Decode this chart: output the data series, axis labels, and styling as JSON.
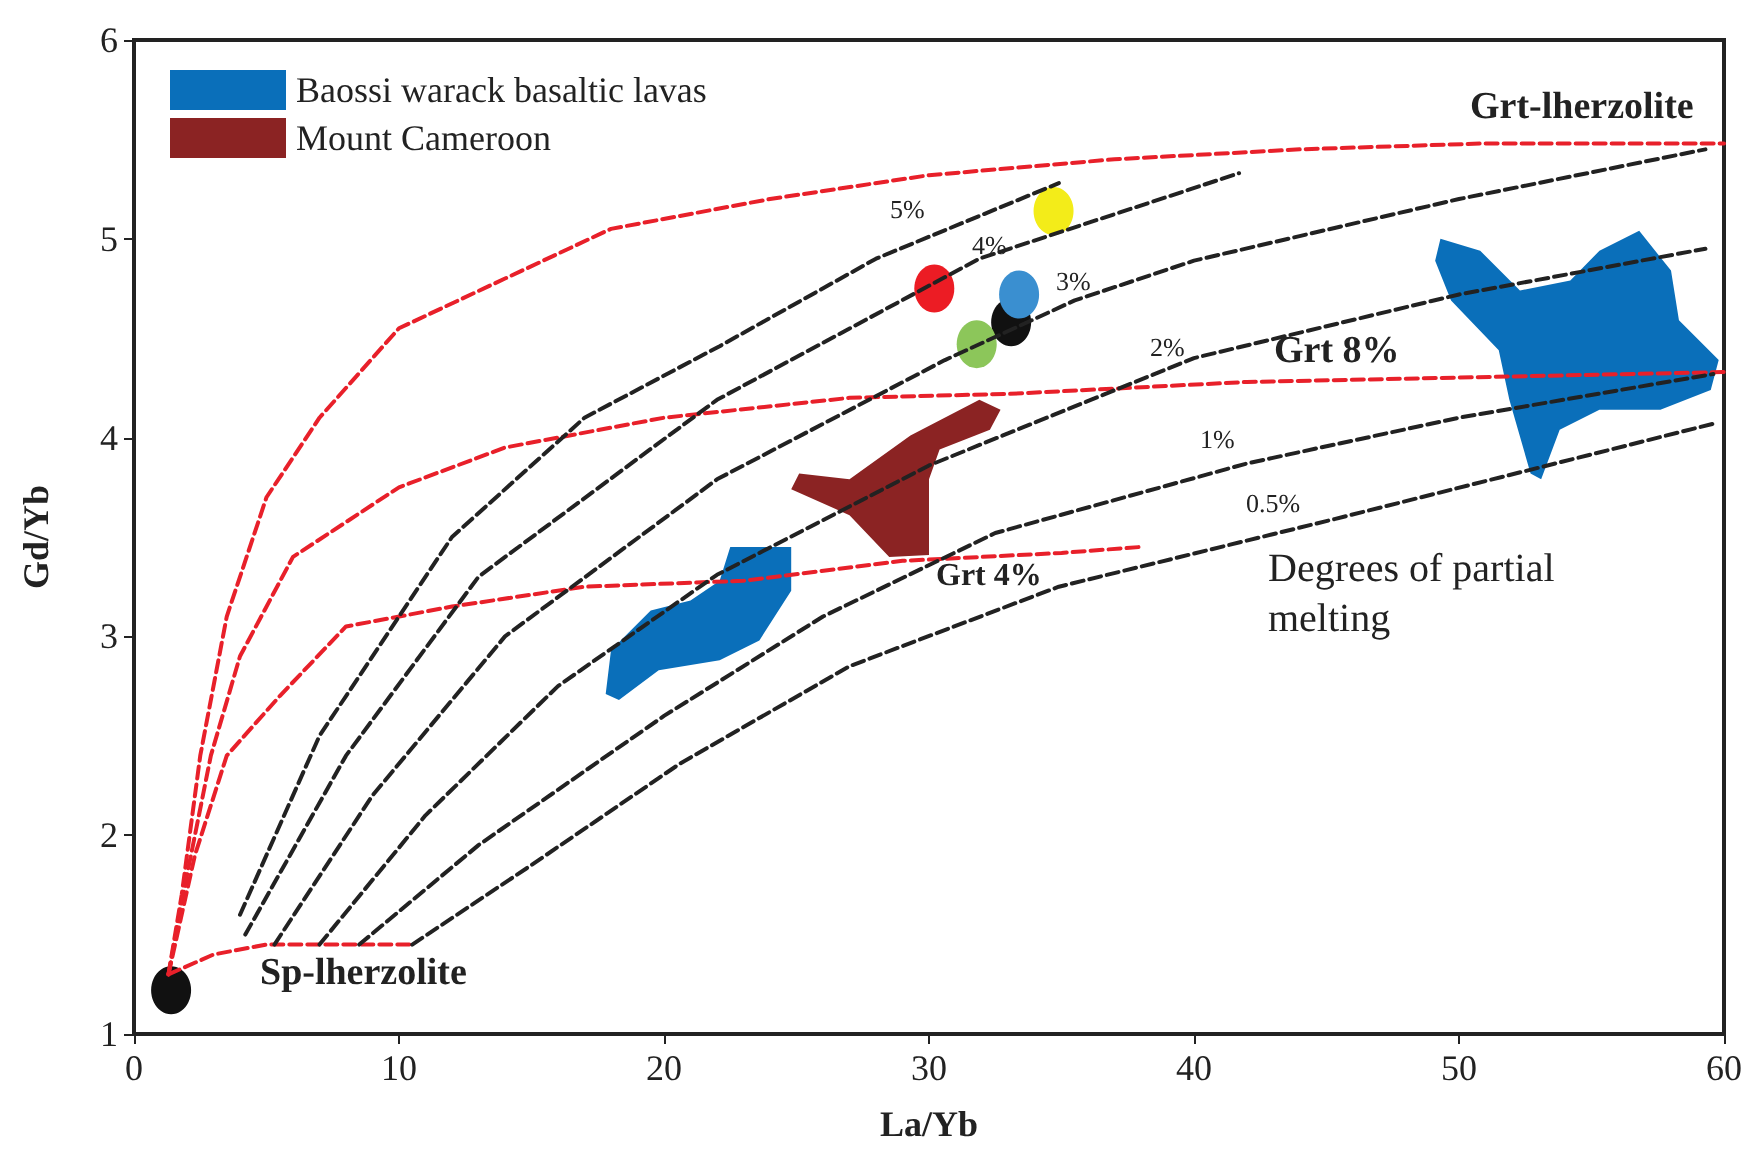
{
  "chart_data": {
    "type": "line",
    "xlabel": "La/Yb",
    "ylabel": "Gd/Yb",
    "xlim": [
      0,
      60
    ],
    "ylim": [
      1,
      6
    ],
    "xticks": [
      0,
      10,
      20,
      30,
      40,
      50,
      60
    ],
    "yticks": [
      1,
      2,
      3,
      4,
      5,
      6
    ],
    "grid": false,
    "legend": "top left",
    "line_style": "dashed",
    "series": [
      {
        "type": "area",
        "name": "Baossi warack basaltic lavas",
        "color": "#0a6fba",
        "x": [
          17.8,
          18.0,
          19.5,
          21.0,
          22.1,
          22.5,
          24.8,
          24.8,
          23.6,
          22.1,
          19.8,
          18.3
        ],
        "values": [
          2.71,
          2.93,
          3.13,
          3.18,
          3.28,
          3.45,
          3.45,
          3.23,
          2.98,
          2.88,
          2.83,
          2.68
        ]
      },
      {
        "type": "area",
        "name": "Mount Cameroon",
        "color": "#8b2323",
        "x": [
          25.1,
          27.0,
          29.3,
          31.9,
          32.7,
          32.3,
          30.4,
          30.0,
          30.0,
          28.5,
          27.0,
          24.8
        ],
        "values": [
          3.82,
          3.79,
          4.01,
          4.19,
          4.14,
          4.04,
          3.94,
          3.79,
          3.41,
          3.4,
          3.61,
          3.74
        ]
      },
      {
        "type": "area",
        "color": "#0a6fba",
        "x": [
          49.3,
          50.8,
          52.3,
          54.2,
          55.3,
          56.8,
          58.0,
          58.3,
          59.8,
          59.5,
          57.6,
          55.3,
          53.8,
          53.1,
          52.7,
          51.9,
          51.5,
          49.7,
          49.1
        ],
        "values": [
          5.0,
          4.94,
          4.74,
          4.79,
          4.94,
          5.04,
          4.84,
          4.59,
          4.39,
          4.24,
          4.14,
          4.14,
          4.04,
          3.79,
          3.82,
          4.19,
          4.44,
          4.69,
          4.89
        ]
      },
      {
        "color": "#e8202a",
        "x": [
          1.3,
          1.8,
          2.5,
          3.5,
          5,
          7,
          10,
          14,
          18,
          24,
          30,
          37,
          44,
          51,
          60
        ],
        "values": [
          1.3,
          1.7,
          2.4,
          3.1,
          3.7,
          4.1,
          4.55,
          4.8,
          5.05,
          5.2,
          5.32,
          5.4,
          5.45,
          5.48,
          5.48
        ]
      },
      {
        "color": "#e8202a",
        "x": [
          1.3,
          2,
          2.9,
          4,
          6,
          10,
          14,
          20,
          27,
          33,
          42,
          60
        ],
        "values": [
          1.3,
          1.8,
          2.4,
          2.9,
          3.4,
          3.75,
          3.95,
          4.1,
          4.2,
          4.22,
          4.28,
          4.33
        ]
      },
      {
        "color": "#e8202a",
        "x": [
          1.3,
          2.3,
          3.5,
          5.5,
          8,
          12,
          17,
          23,
          29,
          35,
          38
        ],
        "values": [
          1.3,
          1.9,
          2.4,
          2.7,
          3.05,
          3.15,
          3.25,
          3.28,
          3.38,
          3.42,
          3.45
        ]
      },
      {
        "color": "#e8202a",
        "x": [
          1.3,
          3,
          5,
          10.5
        ],
        "values": [
          1.3,
          1.4,
          1.45,
          1.45
        ]
      },
      {
        "color": "#222222",
        "x": [
          10.5,
          15,
          20.6,
          27,
          34.9,
          45.3,
          59.6
        ],
        "values": [
          1.45,
          1.85,
          2.36,
          2.85,
          3.25,
          3.59,
          4.07
        ]
      },
      {
        "color": "#222222",
        "x": [
          8.5,
          13,
          20,
          26,
          32.5,
          42,
          50,
          59.6
        ],
        "values": [
          1.45,
          1.95,
          2.6,
          3.1,
          3.52,
          3.87,
          4.1,
          4.32
        ]
      },
      {
        "color": "#222222",
        "x": [
          7,
          11,
          16,
          22,
          30,
          40,
          50,
          59.3
        ],
        "values": [
          1.45,
          2.1,
          2.75,
          3.31,
          3.86,
          4.4,
          4.72,
          4.95
        ]
      },
      {
        "color": "#222222",
        "x": [
          5.3,
          9,
          14,
          22,
          30.6,
          35.5,
          40,
          50,
          59.3
        ],
        "values": [
          1.45,
          2.2,
          3.0,
          3.79,
          4.39,
          4.69,
          4.89,
          5.2,
          5.45
        ]
      },
      {
        "color": "#222222",
        "x": [
          4.2,
          8,
          13,
          22,
          31.9,
          41.7
        ],
        "values": [
          1.5,
          2.4,
          3.3,
          4.19,
          4.9,
          5.33
        ]
      },
      {
        "color": "#222222",
        "x": [
          4,
          7,
          12,
          17,
          22.1,
          28,
          34.9
        ],
        "values": [
          1.6,
          2.5,
          3.5,
          4.1,
          4.46,
          4.9,
          5.28
        ]
      },
      {
        "type": "scatter",
        "marker": "circle",
        "x": [
          1.4,
          30.2,
          34.7,
          33.1,
          33.4,
          31.8
        ],
        "values": [
          1.22,
          4.75,
          5.14,
          4.58,
          4.72,
          4.47
        ],
        "colors": [
          "#111111",
          "#ec1c24",
          "#f3ec19",
          "#111111",
          "#3a8fd0",
          "#8cc65a"
        ]
      }
    ],
    "annotations": [
      "Grt-lherzolite",
      "Grt 8%",
      "Grt 4%",
      "Sp-lherzolite",
      "5%",
      "4%",
      "3%",
      "2%",
      "1%",
      "0.5%",
      "Degrees of partial melting"
    ]
  }
}
